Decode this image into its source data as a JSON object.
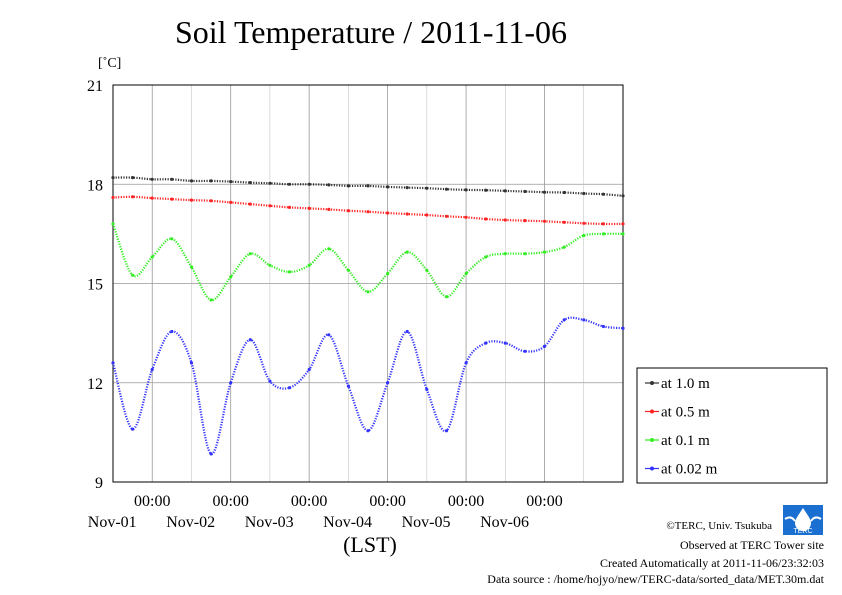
{
  "title": "Soil Temperature / 2011-11-06",
  "unit_label": "[˚C]",
  "xlabel": "(LST)",
  "footer": {
    "copyright": "©TERC, Univ. Tsukuba",
    "observed": "Observed at TERC Tower site",
    "created": "Created Automatically at 2011-11-06/23:32:03",
    "source": "Data source : /home/hojyo/new/TERC-data/sorted_data/MET.30m.dat"
  },
  "logo_text": "TERC",
  "colors": {
    "black": "#333333",
    "red": "#ff2222",
    "green": "#33ee22",
    "blue": "#3333ff",
    "grid": "#999999"
  },
  "chart_data": {
    "type": "line",
    "title": "Soil Temperature / 2011-11-06",
    "xlabel": "(LST)",
    "ylabel": "[˚C]",
    "ylim": [
      9,
      21
    ],
    "yticks": [
      9,
      12,
      15,
      18,
      21
    ],
    "xlim": [
      "2011-10-31T12:00",
      "2011-11-06T24:00"
    ],
    "xticks": [
      {
        "time_label": "00:00",
        "date_label": "Nov-01"
      },
      {
        "time_label": "00:00",
        "date_label": "Nov-02"
      },
      {
        "time_label": "00:00",
        "date_label": "Nov-03"
      },
      {
        "time_label": "00:00",
        "date_label": "Nov-04"
      },
      {
        "time_label": "00:00",
        "date_label": "Nov-05"
      },
      {
        "time_label": "00:00",
        "date_label": "Nov-06"
      }
    ],
    "grid": true,
    "legend_position": "right",
    "x": [
      "2011-10-31T12:00",
      "2011-10-31T18:00",
      "2011-11-01T00:00",
      "2011-11-01T06:00",
      "2011-11-01T12:00",
      "2011-11-01T18:00",
      "2011-11-02T00:00",
      "2011-11-02T06:00",
      "2011-11-02T12:00",
      "2011-11-02T18:00",
      "2011-11-03T00:00",
      "2011-11-03T06:00",
      "2011-11-03T12:00",
      "2011-11-03T18:00",
      "2011-11-04T00:00",
      "2011-11-04T06:00",
      "2011-11-04T12:00",
      "2011-11-04T18:00",
      "2011-11-05T00:00",
      "2011-11-05T06:00",
      "2011-11-05T12:00",
      "2011-11-05T18:00",
      "2011-11-06T00:00",
      "2011-11-06T06:00",
      "2011-11-06T12:00",
      "2011-11-06T18:00",
      "2011-11-06T24:00"
    ],
    "series": [
      {
        "name": "at 1.0 m",
        "color": "#333333",
        "values": [
          18.2,
          18.2,
          18.15,
          18.15,
          18.1,
          18.1,
          18.08,
          18.05,
          18.03,
          18.0,
          18.0,
          17.98,
          17.95,
          17.95,
          17.92,
          17.9,
          17.88,
          17.85,
          17.83,
          17.82,
          17.8,
          17.78,
          17.76,
          17.75,
          17.72,
          17.7,
          17.65
        ]
      },
      {
        "name": "at 0.5 m",
        "color": "#ff2222",
        "values": [
          17.6,
          17.62,
          17.58,
          17.55,
          17.52,
          17.5,
          17.45,
          17.4,
          17.35,
          17.3,
          17.27,
          17.24,
          17.2,
          17.17,
          17.13,
          17.1,
          17.07,
          17.03,
          17.0,
          16.95,
          16.92,
          16.9,
          16.88,
          16.85,
          16.82,
          16.8,
          16.8
        ]
      },
      {
        "name": "at 0.1 m",
        "color": "#33ee22",
        "values": [
          16.8,
          15.25,
          15.8,
          16.35,
          15.5,
          14.5,
          15.2,
          15.9,
          15.55,
          15.35,
          15.55,
          16.05,
          15.4,
          14.75,
          15.3,
          15.95,
          15.4,
          14.6,
          15.3,
          15.8,
          15.9,
          15.9,
          15.95,
          16.1,
          16.45,
          16.5,
          16.5
        ]
      },
      {
        "name": "at 0.02 m",
        "color": "#3333ff",
        "values": [
          12.6,
          10.6,
          12.4,
          13.55,
          12.6,
          9.85,
          12.0,
          13.3,
          12.05,
          11.85,
          12.4,
          13.45,
          11.9,
          10.55,
          12.0,
          13.55,
          11.8,
          10.55,
          12.6,
          13.2,
          13.2,
          12.95,
          13.1,
          13.9,
          13.9,
          13.7,
          13.65
        ]
      }
    ]
  }
}
